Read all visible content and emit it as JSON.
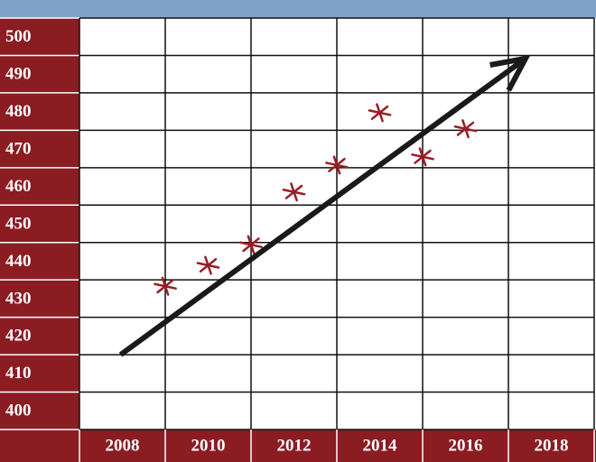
{
  "chart_data": {
    "type": "scatter",
    "x": [
      2009,
      2010,
      2011,
      2012,
      2013,
      2014,
      2015,
      2016
    ],
    "values": [
      433.3,
      438.9,
      444.4,
      458.5,
      465.7,
      479.7,
      467.9,
      475.4
    ],
    "color": "#9b1c24",
    "trend": {
      "x": [
        2007.96,
        2017.4
      ],
      "values": [
        415,
        494.2
      ],
      "color": "#1a1a1a"
    },
    "xlim": [
      2007,
      2019
    ],
    "xticks": [
      2008,
      2010,
      2012,
      2014,
      2016,
      2018
    ],
    "ylim": [
      395,
      505
    ],
    "yticks": [
      400,
      410,
      420,
      430,
      440,
      450,
      460,
      470,
      480,
      490,
      500
    ],
    "grid": true
  }
}
